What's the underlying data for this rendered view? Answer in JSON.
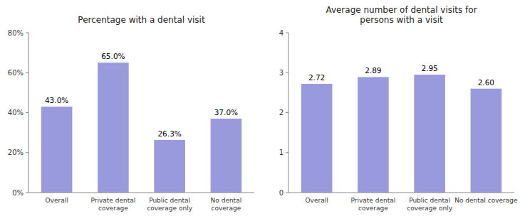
{
  "chart_data": [
    {
      "type": "bar",
      "title": "Percentage with a dental visit",
      "categories": [
        "Overall",
        "Private dental\ncoverage",
        "Public dental\ncoverage only",
        "No dental\ncoverage"
      ],
      "values": [
        43.0,
        65.0,
        26.3,
        37.0
      ],
      "value_labels": [
        "43.0%",
        "65.0%",
        "26.3%",
        "37.0%"
      ],
      "data_labels": true,
      "color": "#9999dd",
      "grid": false,
      "ylim": [
        0,
        80
      ],
      "yticks": [
        {
          "value": 0,
          "label": "0%"
        },
        {
          "value": 20,
          "label": "20%"
        },
        {
          "value": 40,
          "label": "40%"
        },
        {
          "value": 60,
          "label": "60%"
        },
        {
          "value": 80,
          "label": "80%"
        }
      ]
    },
    {
      "type": "bar",
      "title": "Average number of dental visits for\npersons with a visit",
      "categories": [
        "Overall",
        "Private dental\ncoverage",
        "Public dental\ncoverage only",
        "No dental coverage"
      ],
      "values": [
        2.72,
        2.89,
        2.95,
        2.6
      ],
      "value_labels": [
        "2.72",
        "2.89",
        "2.95",
        "2.60"
      ],
      "data_labels": true,
      "color": "#9999dd",
      "grid": false,
      "ylim": [
        0,
        4
      ],
      "yticks": [
        0,
        1,
        2,
        3,
        4
      ]
    }
  ]
}
